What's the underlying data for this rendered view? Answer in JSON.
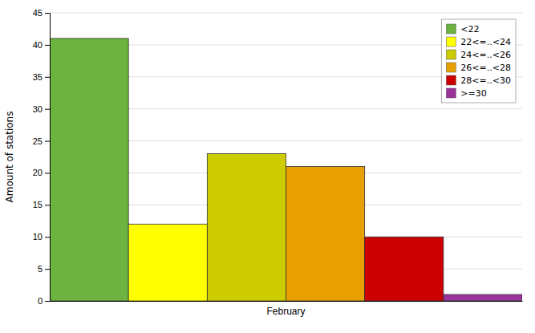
{
  "chart_data": {
    "type": "bar",
    "categories": [
      "February"
    ],
    "series": [
      {
        "name": "<22",
        "color": "#6db33f",
        "values": [
          41
        ]
      },
      {
        "name": "22<=..<24",
        "color": "#ffff00",
        "values": [
          12
        ]
      },
      {
        "name": "24<=..<26",
        "color": "#cccc00",
        "values": [
          23
        ]
      },
      {
        "name": "26<=..<28",
        "color": "#e8a000",
        "values": [
          21
        ]
      },
      {
        "name": "28<=..<30",
        "color": "#cc0000",
        "values": [
          10
        ]
      },
      {
        "name": ">=30",
        "color": "#993399",
        "values": [
          1
        ]
      }
    ],
    "ylabel": "Amount of stations",
    "ylim": [
      0,
      45
    ],
    "yticks": [
      0,
      5,
      10,
      15,
      20,
      25,
      30,
      35,
      40,
      45
    ],
    "grid": true,
    "legend": "upper right"
  }
}
